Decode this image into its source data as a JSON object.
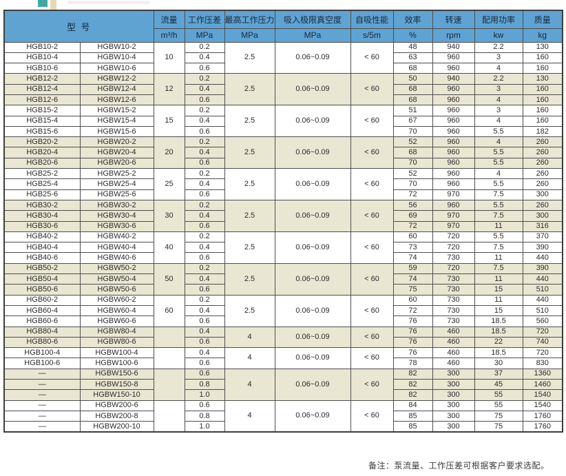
{
  "colors": {
    "header_bg": "#5fa3d3",
    "header_text": "#16293b",
    "shaded_row_bg": "#e9e7d2",
    "border": "#4c4c4c",
    "decor_teal": "#3fa8a3",
    "decor_beige": "#e6d7b8"
  },
  "table": {
    "header": {
      "model": "型  号",
      "columns": [
        {
          "key": "flow",
          "label": "流量",
          "unit": "m³/h"
        },
        {
          "key": "pressure_diff",
          "label": "工作压差",
          "unit": "MPa"
        },
        {
          "key": "max_pressure",
          "label": "最高工作压力",
          "unit": "MPa"
        },
        {
          "key": "vacuum",
          "label": "吸入极限真空度",
          "unit": "MPa"
        },
        {
          "key": "self_priming",
          "label": "自吸性能",
          "unit": "s/5m"
        },
        {
          "key": "efficiency",
          "label": "效率",
          "unit": "%"
        },
        {
          "key": "speed",
          "label": "转速",
          "unit": "rpm"
        },
        {
          "key": "power",
          "label": "配用功率",
          "unit": "kw"
        },
        {
          "key": "weight",
          "label": "质量",
          "unit": "kg"
        }
      ]
    },
    "groups": [
      {
        "flow": "10",
        "max_pressure": "2.5",
        "vacuum": "0.06~0.09",
        "self_priming": "< 60",
        "shaded": false,
        "rows": [
          {
            "model_b": "HGB10-2",
            "model_bw": "HGBW10-2",
            "pressure_diff": "0.2",
            "efficiency": "48",
            "speed": "940",
            "power": "2.2",
            "weight": "130"
          },
          {
            "model_b": "HGB10-4",
            "model_bw": "HGBW10-4",
            "pressure_diff": "0.4",
            "efficiency": "63",
            "speed": "960",
            "power": "3",
            "weight": "160"
          },
          {
            "model_b": "HGB10-6",
            "model_bw": "HGBW10-6",
            "pressure_diff": "0.6",
            "efficiency": "68",
            "speed": "960",
            "power": "4",
            "weight": "160"
          }
        ]
      },
      {
        "flow": "12",
        "max_pressure": "2.5",
        "vacuum": "0.06~0.09",
        "self_priming": "< 60",
        "shaded": true,
        "rows": [
          {
            "model_b": "HGB12-2",
            "model_bw": "HGBW12-2",
            "pressure_diff": "0.2",
            "efficiency": "50",
            "speed": "940",
            "power": "2.2",
            "weight": "130"
          },
          {
            "model_b": "HGB12-4",
            "model_bw": "HGBW12-4",
            "pressure_diff": "0.4",
            "efficiency": "68",
            "speed": "960",
            "power": "3",
            "weight": "160"
          },
          {
            "model_b": "HGB12-6",
            "model_bw": "HGBW12-6",
            "pressure_diff": "0.6",
            "efficiency": "68",
            "speed": "960",
            "power": "4",
            "weight": "160"
          }
        ]
      },
      {
        "flow": "15",
        "max_pressure": "2.5",
        "vacuum": "0.06~0.09",
        "self_priming": "< 60",
        "shaded": false,
        "rows": [
          {
            "model_b": "HGB15-2",
            "model_bw": "HGBW15-2",
            "pressure_diff": "0.2",
            "efficiency": "51",
            "speed": "960",
            "power": "3",
            "weight": "160"
          },
          {
            "model_b": "HGB15-4",
            "model_bw": "HGBW15-4",
            "pressure_diff": "0.4",
            "efficiency": "67",
            "speed": "960",
            "power": "4",
            "weight": "160"
          },
          {
            "model_b": "HGB15-6",
            "model_bw": "HGBW15-6",
            "pressure_diff": "0.6",
            "efficiency": "70",
            "speed": "960",
            "power": "5.5",
            "weight": "182"
          }
        ]
      },
      {
        "flow": "20",
        "max_pressure": "2.5",
        "vacuum": "0.06~0.09",
        "self_priming": "< 60",
        "shaded": true,
        "rows": [
          {
            "model_b": "HGB20-2",
            "model_bw": "HGBW20-2",
            "pressure_diff": "0.2",
            "efficiency": "52",
            "speed": "960",
            "power": "4",
            "weight": "260"
          },
          {
            "model_b": "HGB20-4",
            "model_bw": "HGBW20-4",
            "pressure_diff": "0.4",
            "efficiency": "68",
            "speed": "960",
            "power": "5.5",
            "weight": "260"
          },
          {
            "model_b": "HGB20-6",
            "model_bw": "HGBW20-6",
            "pressure_diff": "0.6",
            "efficiency": "70",
            "speed": "960",
            "power": "5.5",
            "weight": "260"
          }
        ]
      },
      {
        "flow": "25",
        "max_pressure": "2.5",
        "vacuum": "0.06~0.09",
        "self_priming": "< 60",
        "shaded": false,
        "rows": [
          {
            "model_b": "HGB25-2",
            "model_bw": "HGBW25-2",
            "pressure_diff": "0.2",
            "efficiency": "52",
            "speed": "960",
            "power": "4",
            "weight": "260"
          },
          {
            "model_b": "HGB25-4",
            "model_bw": "HGBW25-4",
            "pressure_diff": "0.4",
            "efficiency": "70",
            "speed": "960",
            "power": "5.5",
            "weight": "260"
          },
          {
            "model_b": "HGB25-6",
            "model_bw": "HGBW25-6",
            "pressure_diff": "0.6",
            "efficiency": "72",
            "speed": "970",
            "power": "7.5",
            "weight": "300"
          }
        ]
      },
      {
        "flow": "30",
        "max_pressure": "2.5",
        "vacuum": "0.06~0.09",
        "self_priming": "< 60",
        "shaded": true,
        "rows": [
          {
            "model_b": "HGB30-2",
            "model_bw": "HGBW30-2",
            "pressure_diff": "0.2",
            "efficiency": "56",
            "speed": "960",
            "power": "5.5",
            "weight": "260"
          },
          {
            "model_b": "HGB30-4",
            "model_bw": "HGBW30-4",
            "pressure_diff": "0.4",
            "efficiency": "69",
            "speed": "970",
            "power": "7.5",
            "weight": "300"
          },
          {
            "model_b": "HGB30-6",
            "model_bw": "HGBW30-6",
            "pressure_diff": "0.6",
            "efficiency": "72",
            "speed": "970",
            "power": "11",
            "weight": "316"
          }
        ]
      },
      {
        "flow": "40",
        "max_pressure": "2.5",
        "vacuum": "0.06~0.09",
        "self_priming": "< 60",
        "shaded": false,
        "rows": [
          {
            "model_b": "HGB40-2",
            "model_bw": "HGBW40-2",
            "pressure_diff": "0.2",
            "efficiency": "60",
            "speed": "720",
            "power": "5.5",
            "weight": "370"
          },
          {
            "model_b": "HGB40-4",
            "model_bw": "HGBW40-4",
            "pressure_diff": "0.4",
            "efficiency": "73",
            "speed": "720",
            "power": "7.5",
            "weight": "390"
          },
          {
            "model_b": "HGB40-6",
            "model_bw": "HGBW40-6",
            "pressure_diff": "0.6",
            "efficiency": "74",
            "speed": "730",
            "power": "11",
            "weight": "440"
          }
        ]
      },
      {
        "flow": "50",
        "max_pressure": "2.5",
        "vacuum": "0.06~0.09",
        "self_priming": "< 60",
        "shaded": true,
        "rows": [
          {
            "model_b": "HGB50-2",
            "model_bw": "HGBW50-2",
            "pressure_diff": "0.2",
            "efficiency": "59",
            "speed": "720",
            "power": "7.5",
            "weight": "390"
          },
          {
            "model_b": "HGB50-4",
            "model_bw": "HGBW50-4",
            "pressure_diff": "0.4",
            "efficiency": "74",
            "speed": "730",
            "power": "11",
            "weight": "440"
          },
          {
            "model_b": "HGB50-6",
            "model_bw": "HGBW50-6",
            "pressure_diff": "0.6",
            "efficiency": "75",
            "speed": "730",
            "power": "15",
            "weight": "510"
          }
        ]
      },
      {
        "flow": "60",
        "max_pressure": "2.5",
        "vacuum": "0.06~0.09",
        "self_priming": "< 60",
        "shaded": false,
        "rows": [
          {
            "model_b": "HGB60-2",
            "model_bw": "HGBW60-2",
            "pressure_diff": "0.2",
            "efficiency": "60",
            "speed": "730",
            "power": "11",
            "weight": "440"
          },
          {
            "model_b": "HGB60-4",
            "model_bw": "HGBW60-4",
            "pressure_diff": "0.4",
            "efficiency": "72",
            "speed": "730",
            "power": "15",
            "weight": "510"
          },
          {
            "model_b": "HGB60-6",
            "model_bw": "HGBW60-6",
            "pressure_diff": "0.6",
            "efficiency": "76",
            "speed": "730",
            "power": "18.5",
            "weight": "560"
          }
        ]
      },
      {
        "flow": "",
        "max_pressure": "4",
        "vacuum": "0.06~0.09",
        "self_priming": "< 60",
        "shaded": true,
        "rows": [
          {
            "model_b": "HGB80-4",
            "model_bw": "HGBW80-4",
            "pressure_diff": "0.4",
            "efficiency": "76",
            "speed": "460",
            "power": "18.5",
            "weight": "720"
          },
          {
            "model_b": "HGB80-6",
            "model_bw": "HGBW80-6",
            "pressure_diff": "0.6",
            "efficiency": "76",
            "speed": "460",
            "power": "22",
            "weight": "740"
          }
        ]
      },
      {
        "flow": "",
        "max_pressure": "4",
        "vacuum": "0.06~0.09",
        "self_priming": "< 60",
        "shaded": false,
        "rows": [
          {
            "model_b": "HGB100-4",
            "model_bw": "HGBW100-4",
            "pressure_diff": "0.4",
            "efficiency": "76",
            "speed": "460",
            "power": "18.5",
            "weight": "720"
          },
          {
            "model_b": "HGB100-6",
            "model_bw": "HGBW100-6",
            "pressure_diff": "0.6",
            "efficiency": "78",
            "speed": "460",
            "power": "30",
            "weight": "830"
          }
        ]
      },
      {
        "flow": "",
        "max_pressure": "4",
        "vacuum": "0.06~0.09",
        "self_priming": "< 60",
        "shaded": true,
        "rows": [
          {
            "model_b": "—",
            "model_bw": "HGBW150-6",
            "pressure_diff": "0.6",
            "efficiency": "82",
            "speed": "300",
            "power": "37",
            "weight": "1360"
          },
          {
            "model_b": "—",
            "model_bw": "HGBW150-8",
            "pressure_diff": "0.8",
            "efficiency": "82",
            "speed": "300",
            "power": "45",
            "weight": "1460"
          },
          {
            "model_b": "—",
            "model_bw": "HGBW150-10",
            "pressure_diff": "1.0",
            "efficiency": "82",
            "speed": "300",
            "power": "55",
            "weight": "1540"
          }
        ]
      },
      {
        "flow": "",
        "max_pressure": "4",
        "vacuum": "0.06~0.09",
        "self_priming": "< 60",
        "shaded": false,
        "rows": [
          {
            "model_b": "—",
            "model_bw": "HGBW200-6",
            "pressure_diff": "0.6",
            "efficiency": "84",
            "speed": "300",
            "power": "55",
            "weight": "1540"
          },
          {
            "model_b": "—",
            "model_bw": "HGBW200-8",
            "pressure_diff": "0.8",
            "efficiency": "85",
            "speed": "300",
            "power": "75",
            "weight": "1760"
          },
          {
            "model_b": "—",
            "model_bw": "HGBW200-10",
            "pressure_diff": "1.0",
            "efficiency": "85",
            "speed": "300",
            "power": "75",
            "weight": "1760"
          }
        ]
      }
    ],
    "note": "备注：泵流量、工作压差可根据客户要求选配。"
  }
}
